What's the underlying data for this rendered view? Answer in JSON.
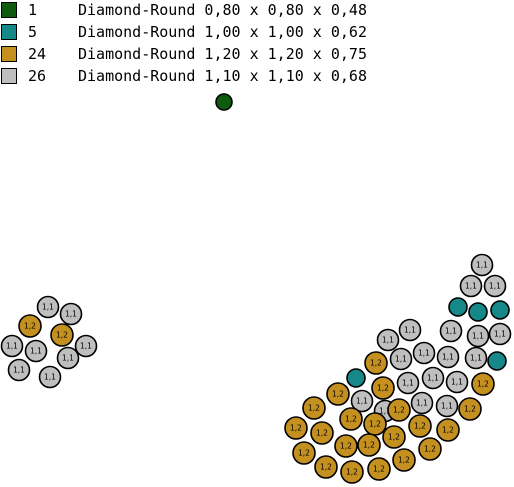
{
  "legend": [
    {
      "count": "1",
      "desc": "Diamond-Round 0,80 x 0,80 x 0,48",
      "color": "#0e5a0e"
    },
    {
      "count": "5",
      "desc": "Diamond-Round 1,00 x 1,00 x 0,62",
      "color": "#17888a"
    },
    {
      "count": "24",
      "desc": "Diamond-Round 1,20 x 1,20 x 0,75",
      "color": "#c49020"
    },
    {
      "count": "26",
      "desc": "Diamond-Round 1,10 x 1,10 x 0,68",
      "color": "#bfbfbf"
    }
  ],
  "stone_types": {
    "green": {
      "color": "#0e5a0e",
      "label": ""
    },
    "teal": {
      "color": "#17888a",
      "label": ""
    },
    "gold": {
      "color": "#c49020",
      "label": "1,2"
    },
    "gray": {
      "color": "#bfbfbf",
      "label": "1,1"
    }
  }
}
